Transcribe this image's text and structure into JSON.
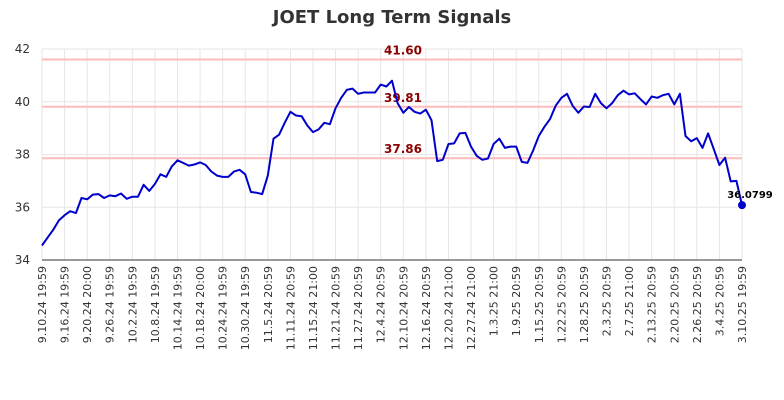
{
  "chart_data": {
    "type": "line",
    "title": "JOET Long Term Signals",
    "xlabel": "",
    "ylabel": "",
    "ylim": [
      34,
      42
    ],
    "yticks": [
      34,
      36,
      38,
      40,
      42
    ],
    "grid": true,
    "line_color": "#0000cc",
    "level_color": "#ffbbbb",
    "level_label_color": "#8b0000",
    "xtick_labels": [
      "9.10.24 19:59",
      "9.16.24 19:59",
      "9.20.24 20:00",
      "9.26.24 19:59",
      "10.2.24 19:59",
      "10.8.24 19:59",
      "10.14.24 19:59",
      "10.18.24 20:00",
      "10.24.24 19:59",
      "10.30.24 19:59",
      "11.5.24 20:59",
      "11.11.24 20:59",
      "11.15.24 21:00",
      "11.21.24 20:59",
      "11.27.24 20:59",
      "12.4.24 20:59",
      "12.10.24 20:59",
      "12.16.24 20:59",
      "12.20.24 21:00",
      "12.27.24 21:00",
      "1.3.25 21:00",
      "1.9.25 20:59",
      "1.15.25 20:59",
      "1.22.25 20:59",
      "1.28.25 20:59",
      "2.3.25 20:59",
      "2.7.25 21:00",
      "2.13.25 20:59",
      "2.20.25 20:59",
      "2.26.25 20:59",
      "3.4.25 20:59",
      "3.10.25 19:59"
    ],
    "levels": [
      {
        "value": 41.6,
        "label": "41.60"
      },
      {
        "value": 39.81,
        "label": "39.81"
      },
      {
        "value": 37.86,
        "label": "37.86"
      }
    ],
    "last_value_label": "36.0799",
    "series": [
      {
        "values": [
          34.55,
          34.85,
          35.15,
          35.5,
          35.7,
          35.85,
          35.78,
          36.35,
          36.3,
          36.48,
          36.5,
          36.35,
          36.45,
          36.42,
          36.52,
          36.32,
          36.4,
          36.4,
          36.85,
          36.62,
          36.88,
          37.25,
          37.15,
          37.55,
          37.78,
          37.68,
          37.58,
          37.62,
          37.7,
          37.6,
          37.35,
          37.2,
          37.15,
          37.15,
          37.35,
          37.42,
          37.25,
          36.58,
          36.55,
          36.5,
          37.2,
          38.6,
          38.75,
          39.2,
          39.62,
          39.48,
          39.45,
          39.1,
          38.85,
          38.95,
          39.2,
          39.15,
          39.75,
          40.15,
          40.45,
          40.5,
          40.3,
          40.35,
          40.35,
          40.35,
          40.65,
          40.58,
          40.8,
          39.95,
          39.58,
          39.8,
          39.62,
          39.55,
          39.7,
          39.3,
          37.75,
          37.8,
          38.4,
          38.42,
          38.8,
          38.82,
          38.3,
          37.95,
          37.8,
          37.85,
          38.4,
          38.6,
          38.25,
          38.3,
          38.3,
          37.72,
          37.68,
          38.15,
          38.7,
          39.05,
          39.35,
          39.85,
          40.15,
          40.3,
          39.85,
          39.58,
          39.82,
          39.8,
          40.3,
          39.95,
          39.75,
          39.95,
          40.25,
          40.42,
          40.28,
          40.32,
          40.1,
          39.9,
          40.2,
          40.15,
          40.25,
          40.3,
          39.9,
          40.3,
          38.7,
          38.5,
          38.62,
          38.25,
          38.8,
          38.2,
          37.6,
          37.88,
          36.98,
          37.0,
          36.08
        ]
      }
    ]
  }
}
